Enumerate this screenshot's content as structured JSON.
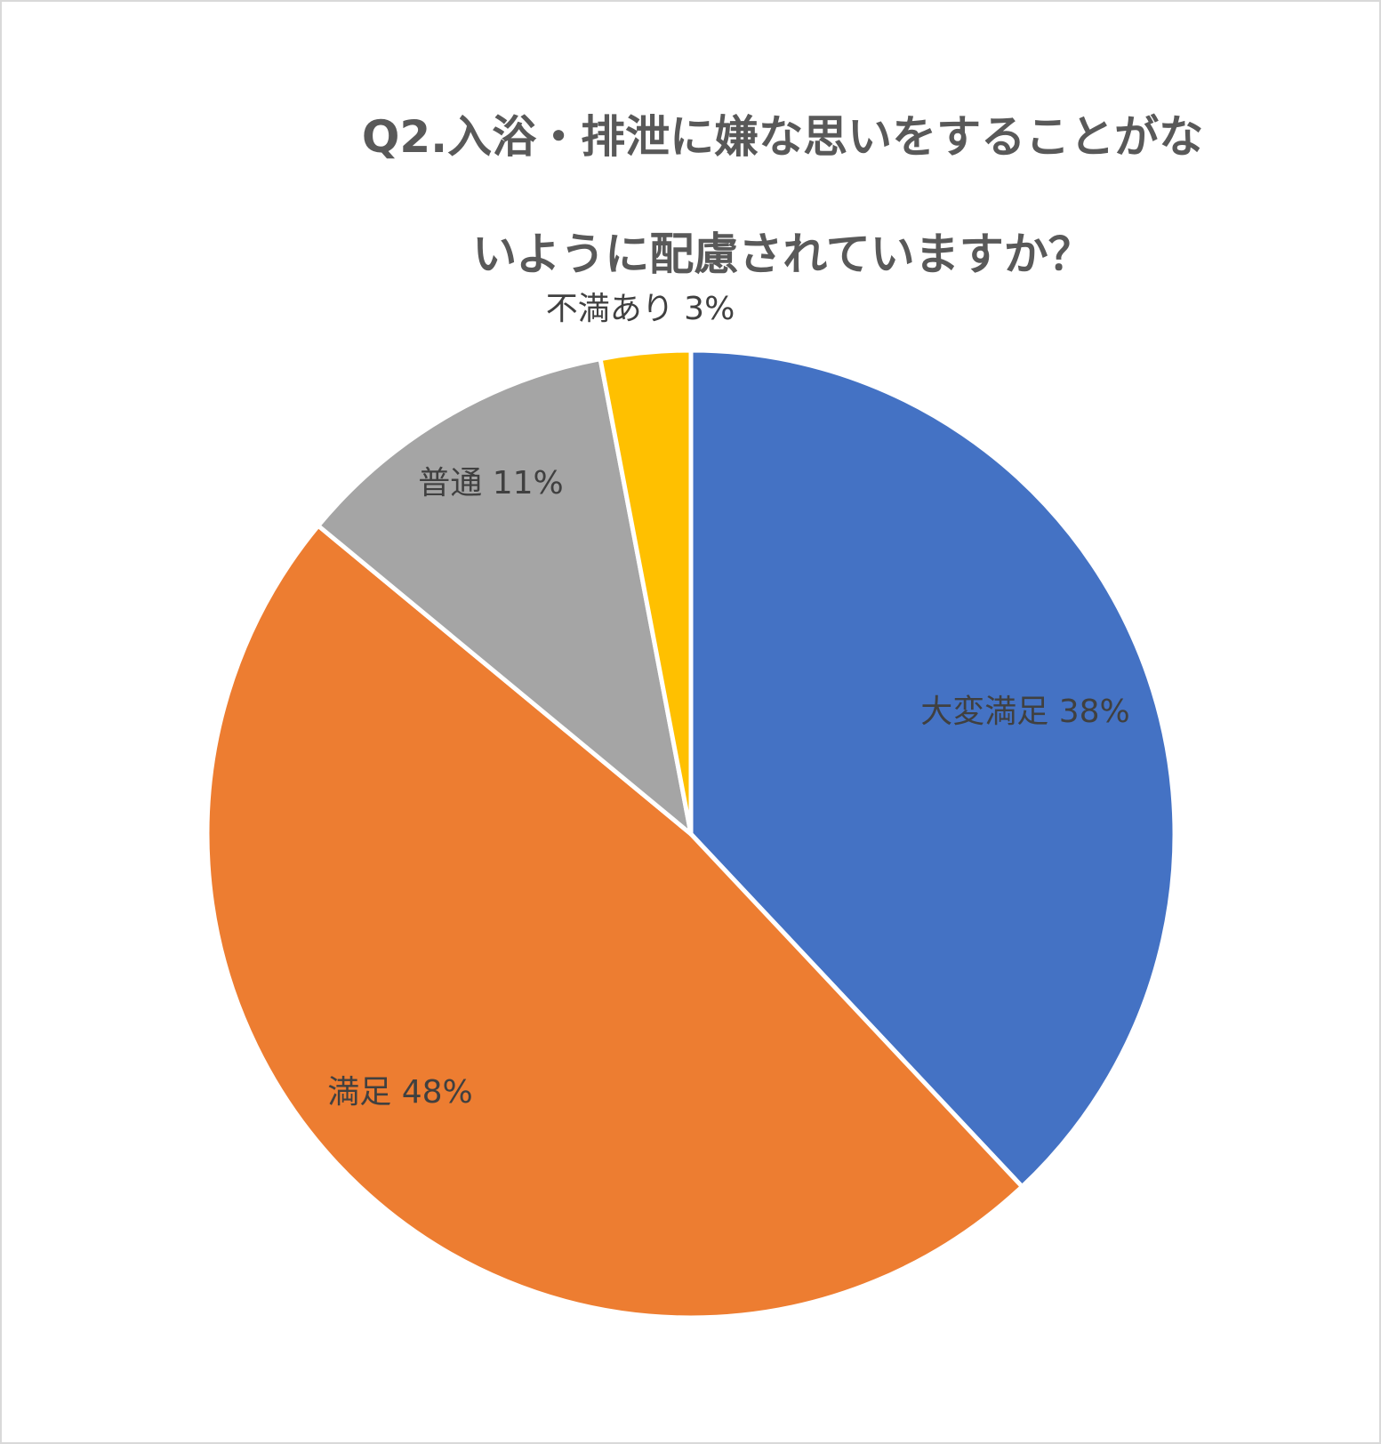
{
  "chart_data": {
    "type": "pie",
    "title_lines": [
      "Q2.入浴・排泄に嫌な思いをすることがな",
      "いように配慮されていますか？"
    ],
    "slices": [
      {
        "label": "大変満足",
        "value": 38,
        "display": "大変満足 38%",
        "color": "#4472C4"
      },
      {
        "label": "満足",
        "value": 48,
        "display": "満足 48%",
        "color": "#ED7D31"
      },
      {
        "label": "普通",
        "value": 11,
        "display": "普通 11%",
        "color": "#A5A5A5"
      },
      {
        "label": "不満あり",
        "value": 3,
        "display": "不満あり 3%",
        "color": "#FFC000"
      }
    ],
    "start_angle": "12 o'clock",
    "direction": "clockwise",
    "legend": "none",
    "data_labels": "category and percentage"
  }
}
